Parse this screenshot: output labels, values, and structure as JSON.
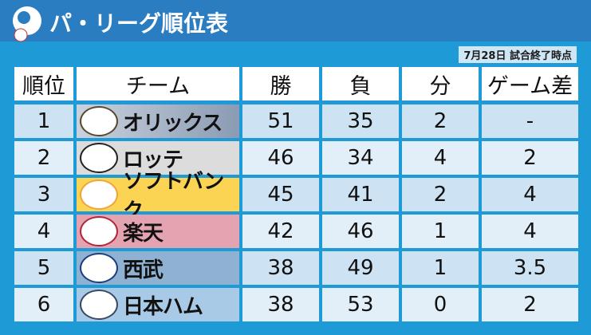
{
  "header": {
    "title": "パ・リーグ順位表",
    "note": "7月28日 試合終了時点"
  },
  "table": {
    "columns": [
      "順位",
      "チーム",
      "勝",
      "負",
      "分",
      "ゲーム差"
    ],
    "rows": [
      [
        1,
        "オリックス",
        51,
        35,
        2,
        "-"
      ],
      [
        2,
        "ロッテ",
        46,
        34,
        4,
        2
      ],
      [
        3,
        "ソフトバンク",
        45,
        41,
        2,
        4
      ],
      [
        4,
        "楽天",
        42,
        46,
        1,
        4
      ],
      [
        5,
        "西武",
        38,
        49,
        1,
        3.5
      ],
      [
        6,
        "日本ハム",
        38,
        53,
        0,
        2
      ]
    ]
  }
}
